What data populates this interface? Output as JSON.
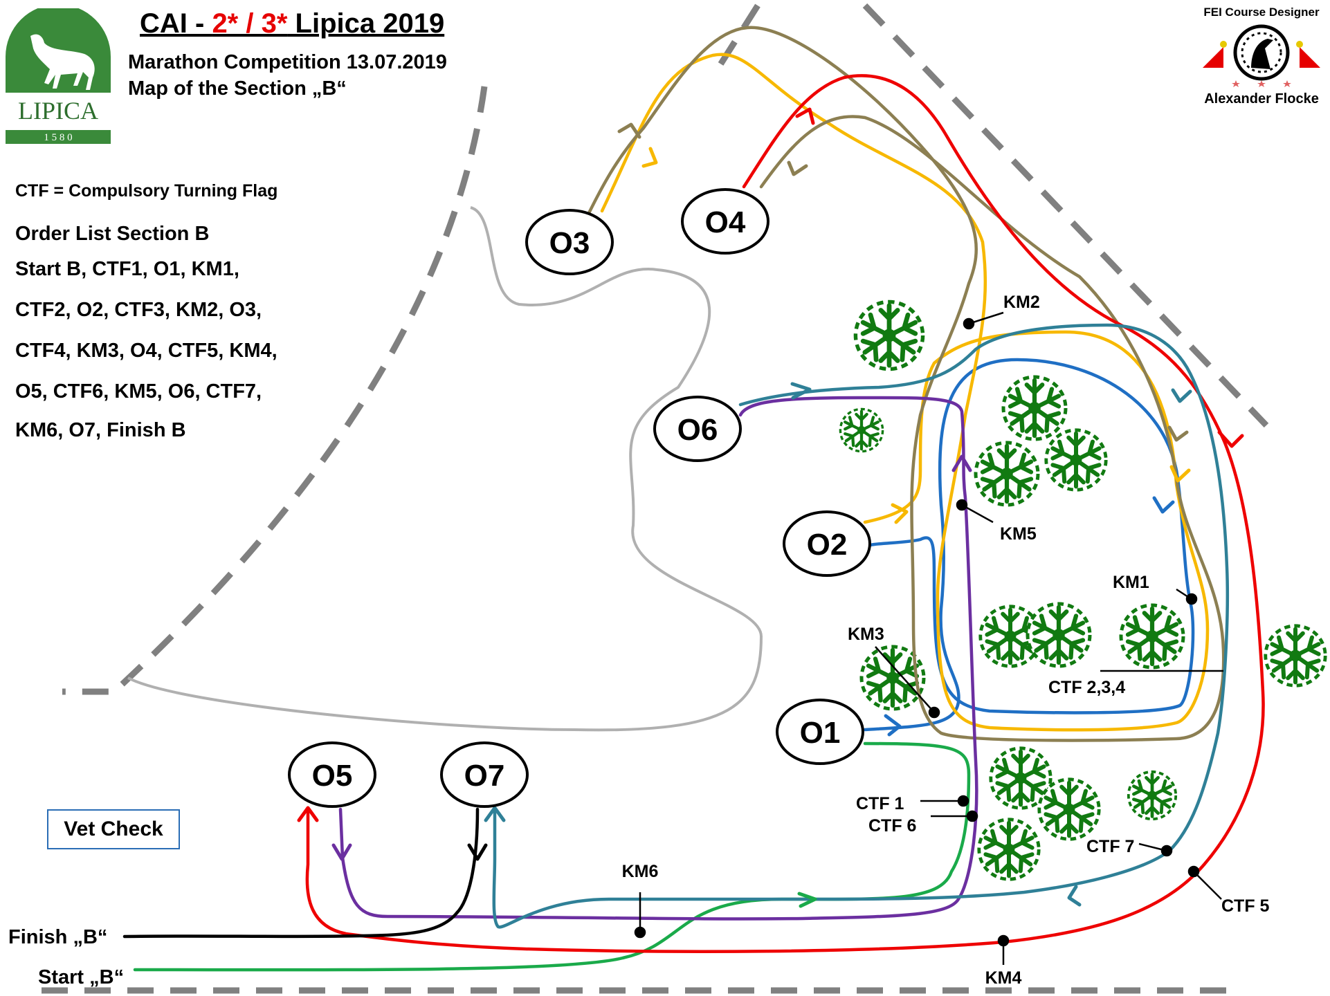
{
  "header": {
    "title_prefix": "CAI - ",
    "title_red": "2* / 3*",
    "title_suffix": " Lipica 2019",
    "subtitle_1": "Marathon Competition 13.07.2019",
    "subtitle_2": "Map of the Section „B“"
  },
  "logo": {
    "text": "LIPICA",
    "year": "1 5 8 0",
    "color": "#3a8a3a"
  },
  "designer": {
    "top_label": "FEI Course Designer",
    "name": "Alexander Flocke"
  },
  "legend": {
    "ctf_note": "CTF = Compulsory Turning Flag",
    "order_heading": "Order List Section B",
    "order_lines": [
      "Start B, CTF1, O1, KM1,",
      "CTF2, O2, CTF3, KM2, O3,",
      "CTF4, KM3, O4, CTF5, KM4,",
      "O5, CTF6, KM5, O6, CTF7,",
      "KM6, O7, Finish B"
    ]
  },
  "vet_check": "Vet Check",
  "obstacles": [
    "O1",
    "O2",
    "O3",
    "O4",
    "O5",
    "O6",
    "O7"
  ],
  "markers": {
    "km1": "KM1",
    "km2": "KM2",
    "km3": "KM3",
    "km4": "KM4",
    "km5": "KM5",
    "km6": "KM6",
    "ctf1": "CTF 1",
    "ctf6": "CTF 6",
    "ctf7": "CTF 7",
    "ctf5": "CTF 5",
    "ctf234": "CTF 2,3,4",
    "finish": "Finish „B“",
    "start": "Start „B“"
  },
  "route_colors": {
    "green": "#1aaa4a",
    "blue": "#1f6fc4",
    "yellow": "#f7b800",
    "olive": "#8c7f52",
    "red": "#ee0000",
    "purple": "#6b2fa0",
    "teal": "#2f8097",
    "black": "#000000",
    "grey_path": "#b0b0b0",
    "boundary": "#808080",
    "tree": "#117a11"
  }
}
